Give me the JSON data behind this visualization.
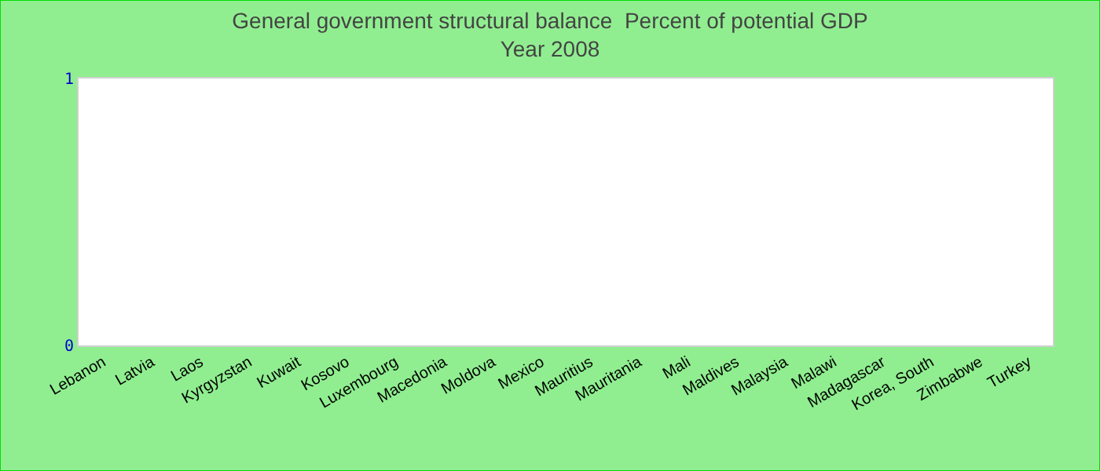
{
  "chart_data": {
    "type": "bar",
    "title": "General government structural balance  Percent of potential GDP",
    "subtitle": "Year 2008",
    "categories": [
      "Lebanon",
      "Latvia",
      "Laos",
      "Kyrgyzstan",
      "Kuwait",
      "Kosovo",
      "Luxembourg",
      "Macedonia",
      "Moldova",
      "Mexico",
      "Mauritius",
      "Mauritania",
      "Mali",
      "Maldives",
      "Malaysia",
      "Malawi",
      "Madagascar",
      "Korea, South",
      "Zimbabwe",
      "Turkey"
    ],
    "values": [
      null,
      null,
      null,
      null,
      null,
      null,
      null,
      null,
      null,
      null,
      null,
      null,
      null,
      null,
      null,
      null,
      null,
      null,
      null,
      null
    ],
    "ylim": [
      0,
      1
    ],
    "yticks": [
      0,
      1
    ]
  }
}
